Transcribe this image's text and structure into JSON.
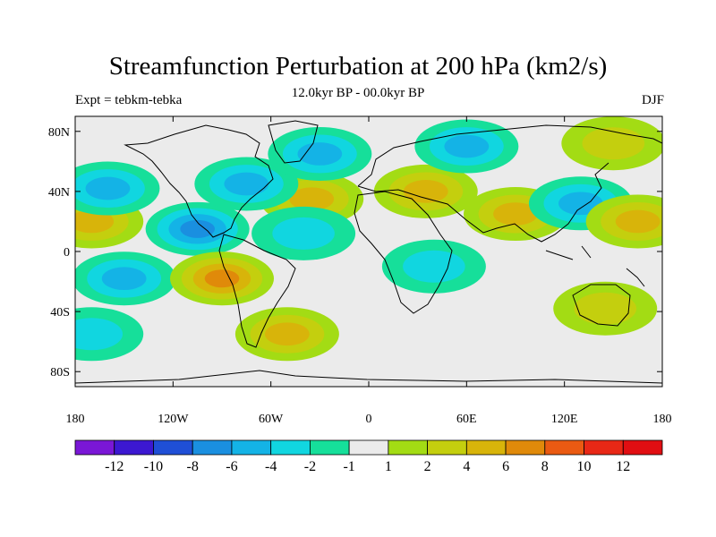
{
  "title": "Streamfunction Perturbation at 200 hPa (km2/s)",
  "subtitle": "12.0kyr BP - 00.0kyr BP",
  "left_label": "Expt = tebkm-tebka",
  "right_label": "DJF",
  "lat_ticks": [
    "80N",
    "40N",
    "0",
    "40S",
    "80S"
  ],
  "lon_ticks": [
    "180",
    "120W",
    "60W",
    "0",
    "60E",
    "120E",
    "180"
  ],
  "colorbar": {
    "labels": [
      "-12",
      "-10",
      "-8",
      "-6",
      "-4",
      "-2",
      "-1",
      "1",
      "2",
      "4",
      "6",
      "8",
      "10",
      "12"
    ],
    "colors": [
      "#7a17d6",
      "#3c18d1",
      "#1f4fd6",
      "#1a8fe0",
      "#14b3e6",
      "#11d6e0",
      "#16df9a",
      "#ebebeb",
      "#a3dc14",
      "#c4cf0e",
      "#d8b40a",
      "#e08a0a",
      "#ea5a12",
      "#e82816",
      "#e10e12"
    ]
  },
  "chart_data": {
    "type": "filled-contour-map",
    "variable": "Streamfunction Perturbation at 200 hPa",
    "units": "km2/s",
    "season": "DJF",
    "levels": [
      -12,
      -10,
      -8,
      -6,
      -4,
      -2,
      -1,
      1,
      2,
      4,
      6,
      8,
      10,
      12
    ],
    "x_range": [
      -180,
      180
    ],
    "y_range": [
      -90,
      90
    ],
    "features": [
      {
        "kind": "max",
        "lon": -170,
        "lat": 20,
        "value": 5
      },
      {
        "kind": "min",
        "lon": -160,
        "lat": 42,
        "value": -5
      },
      {
        "kind": "min",
        "lon": -105,
        "lat": 15,
        "value": -7
      },
      {
        "kind": "min",
        "lon": -150,
        "lat": -18,
        "value": -5
      },
      {
        "kind": "max",
        "lon": -90,
        "lat": -18,
        "value": 6
      },
      {
        "kind": "max",
        "lon": -35,
        "lat": 35,
        "value": 4
      },
      {
        "kind": "min",
        "lon": -75,
        "lat": 45,
        "value": -4
      },
      {
        "kind": "min",
        "lon": -30,
        "lat": 65,
        "value": -5
      },
      {
        "kind": "min",
        "lon": -40,
        "lat": 12,
        "value": -3
      },
      {
        "kind": "max",
        "lon": 35,
        "lat": 40,
        "value": 5
      },
      {
        "kind": "max",
        "lon": 90,
        "lat": 25,
        "value": 5
      },
      {
        "kind": "min",
        "lon": 60,
        "lat": 70,
        "value": -4
      },
      {
        "kind": "min",
        "lon": 130,
        "lat": 32,
        "value": -4
      },
      {
        "kind": "max",
        "lon": 165,
        "lat": 20,
        "value": 4
      },
      {
        "kind": "max",
        "lon": 150,
        "lat": 72,
        "value": 2
      },
      {
        "kind": "min",
        "lon": 40,
        "lat": -10,
        "value": -2
      },
      {
        "kind": "max",
        "lon": -50,
        "lat": -55,
        "value": 4
      },
      {
        "kind": "min",
        "lon": -170,
        "lat": -55,
        "value": -2
      },
      {
        "kind": "max",
        "lon": 145,
        "lat": -38,
        "value": 3
      }
    ]
  }
}
